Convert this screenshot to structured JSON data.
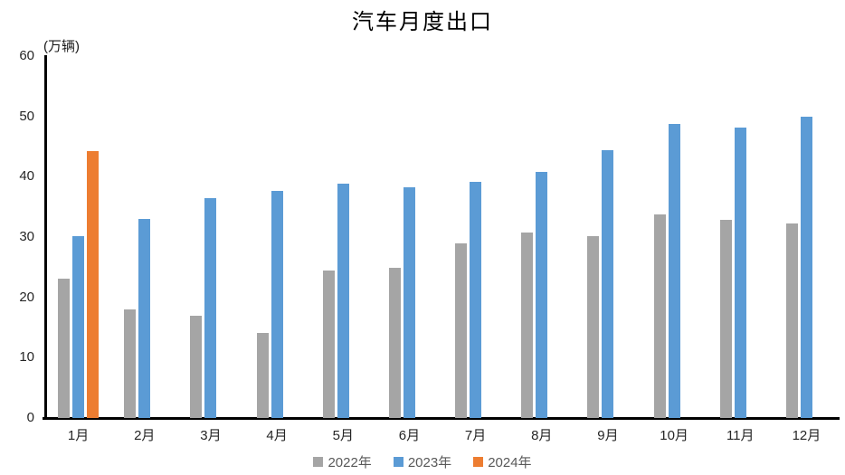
{
  "chart_data": {
    "type": "bar",
    "title": "汽车月度出口",
    "unit_label": "(万辆)",
    "categories": [
      "1月",
      "2月",
      "3月",
      "4月",
      "5月",
      "6月",
      "7月",
      "8月",
      "9月",
      "10月",
      "11月",
      "12月"
    ],
    "series": [
      {
        "name": "2022年",
        "color": "#A5A5A5",
        "values": [
          23.1,
          18.0,
          17.0,
          14.1,
          24.5,
          24.9,
          29.0,
          30.8,
          30.1,
          33.7,
          32.9,
          32.2
        ]
      },
      {
        "name": "2023年",
        "color": "#5B9BD5",
        "values": [
          30.1,
          33.0,
          36.4,
          37.6,
          38.9,
          38.2,
          39.2,
          40.8,
          44.4,
          48.8,
          48.2,
          49.9
        ]
      },
      {
        "name": "2024年",
        "color": "#ED7D31",
        "values": [
          44.3,
          null,
          null,
          null,
          null,
          null,
          null,
          null,
          null,
          null,
          null,
          null
        ]
      }
    ],
    "ylim": [
      0,
      60
    ],
    "yticks": [
      0,
      10,
      20,
      30,
      40,
      50,
      60
    ],
    "grid": false,
    "legend_position": "bottom",
    "axis_color": "#000000",
    "tick_label_color": "#262626",
    "legend_text_color": "#595959"
  }
}
